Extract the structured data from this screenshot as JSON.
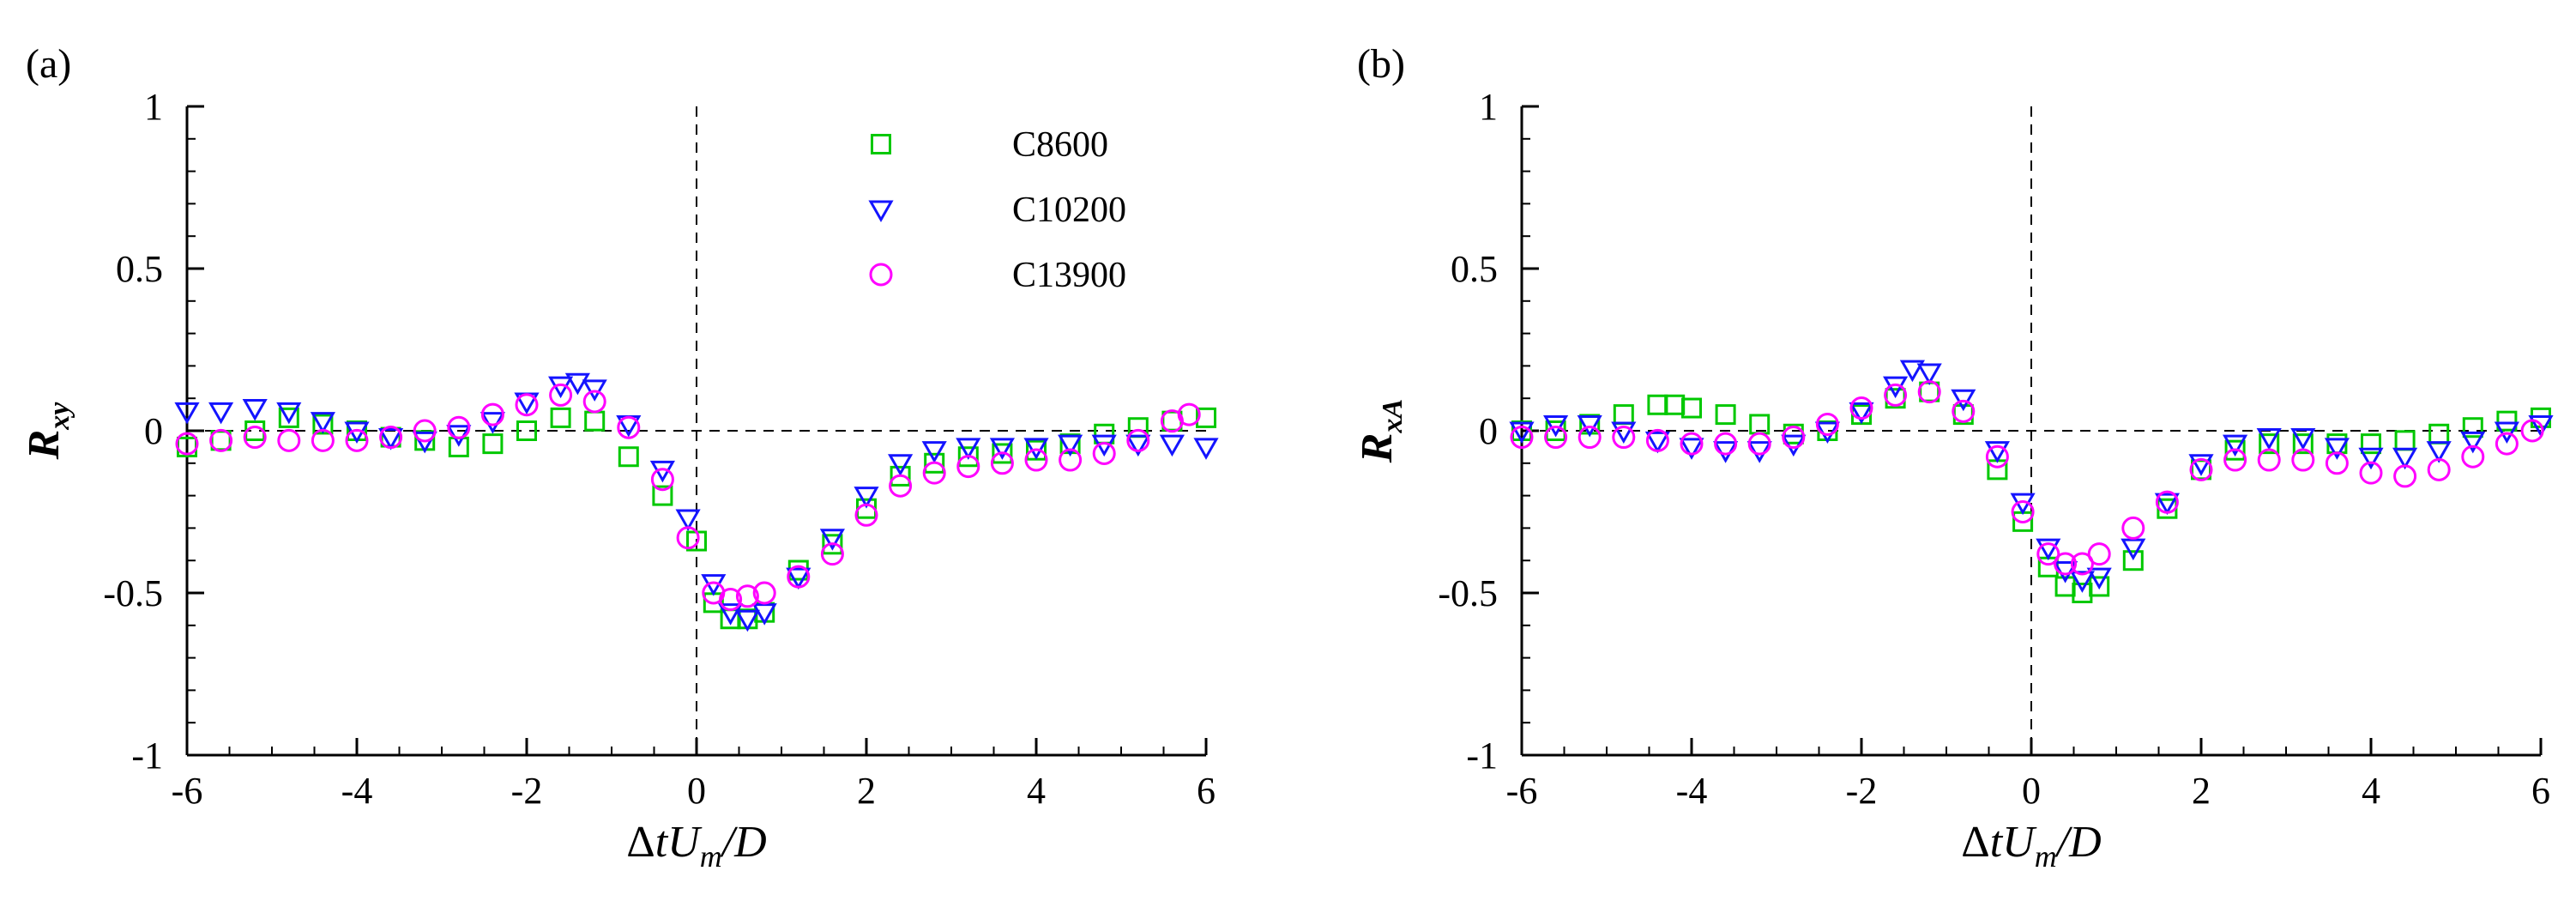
{
  "chart_data": [
    {
      "panel_label": "(a)",
      "type": "scatter",
      "xlabel": {
        "prefix": "Δ",
        "main": "tU",
        "sub": "m",
        "suffix": "/D"
      },
      "ylabel": {
        "main": "R",
        "sub": "xy"
      },
      "xlim": [
        -6,
        6
      ],
      "ylim": [
        -1,
        1
      ],
      "xticks": [
        "-6",
        "-4",
        "-2",
        "0",
        "2",
        "4",
        "6"
      ],
      "xtick_values": [
        -6,
        -4,
        -2,
        0,
        2,
        4,
        6
      ],
      "yticks": [
        "-1",
        "-0.5",
        "0",
        "0.5",
        "1"
      ],
      "ytick_values": [
        -1,
        -0.5,
        0,
        0.5,
        1
      ],
      "reference_lines": {
        "horizontal_y": 0,
        "vertical_x": 0,
        "style": "dashed"
      },
      "legend": {
        "location": "top-right"
      },
      "series": [
        {
          "name": "C8600",
          "marker": "square",
          "color": "#00c800",
          "x": [
            -6,
            -5.6,
            -5.2,
            -4.8,
            -4.4,
            -4,
            -3.6,
            -3.2,
            -2.8,
            -2.4,
            -2,
            -1.6,
            -1.2,
            -0.8,
            -0.4,
            0,
            0.2,
            0.4,
            0.6,
            0.8,
            1.2,
            1.6,
            2,
            2.4,
            2.8,
            3.2,
            3.6,
            4,
            4.4,
            4.8,
            5.2,
            5.6,
            6
          ],
          "y": [
            -0.05,
            -0.03,
            0,
            0.04,
            0.02,
            0,
            -0.02,
            -0.03,
            -0.05,
            -0.04,
            0,
            0.04,
            0.03,
            -0.08,
            -0.2,
            -0.34,
            -0.53,
            -0.58,
            -0.58,
            -0.56,
            -0.43,
            -0.35,
            -0.24,
            -0.14,
            -0.1,
            -0.08,
            -0.07,
            -0.06,
            -0.04,
            -0.01,
            0.01,
            0.03,
            0.04
          ]
        },
        {
          "name": "C10200",
          "marker": "triangle-down",
          "color": "#1414ff",
          "x": [
            -6,
            -5.6,
            -5.2,
            -4.8,
            -4.4,
            -4,
            -3.6,
            -3.2,
            -2.8,
            -2.4,
            -2,
            -1.6,
            -1.4,
            -1.2,
            -0.8,
            -0.4,
            -0.1,
            0.2,
            0.4,
            0.6,
            0.8,
            1.2,
            1.6,
            2,
            2.4,
            2.8,
            3.2,
            3.6,
            4,
            4.4,
            4.8,
            5.2,
            5.6,
            6
          ],
          "y": [
            0.06,
            0.06,
            0.07,
            0.06,
            0.03,
            0,
            -0.02,
            -0.03,
            -0.01,
            0.03,
            0.09,
            0.14,
            0.15,
            0.13,
            0.02,
            -0.12,
            -0.27,
            -0.47,
            -0.56,
            -0.58,
            -0.56,
            -0.45,
            -0.33,
            -0.2,
            -0.1,
            -0.06,
            -0.05,
            -0.05,
            -0.05,
            -0.04,
            -0.04,
            -0.04,
            -0.04,
            -0.05
          ]
        },
        {
          "name": "C13900",
          "marker": "circle",
          "color": "#ff00ff",
          "x": [
            -6,
            -5.6,
            -5.2,
            -4.8,
            -4.4,
            -4,
            -3.6,
            -3.2,
            -2.8,
            -2.4,
            -2,
            -1.6,
            -1.2,
            -0.8,
            -0.4,
            -0.1,
            0.2,
            0.4,
            0.6,
            0.8,
            1.2,
            1.6,
            2,
            2.4,
            2.8,
            3.2,
            3.6,
            4,
            4.4,
            4.8,
            5.2,
            5.6,
            5.8
          ],
          "y": [
            -0.04,
            -0.03,
            -0.02,
            -0.03,
            -0.03,
            -0.03,
            -0.02,
            0,
            0.01,
            0.05,
            0.08,
            0.11,
            0.09,
            0.01,
            -0.15,
            -0.33,
            -0.5,
            -0.52,
            -0.51,
            -0.5,
            -0.45,
            -0.38,
            -0.26,
            -0.17,
            -0.13,
            -0.11,
            -0.1,
            -0.09,
            -0.09,
            -0.07,
            -0.03,
            0.03,
            0.05
          ]
        }
      ]
    },
    {
      "panel_label": "(b)",
      "type": "scatter",
      "xlabel": {
        "prefix": "Δ",
        "main": "tU",
        "sub": "m",
        "suffix": "/D"
      },
      "ylabel": {
        "main": "R",
        "sub": "xA"
      },
      "xlim": [
        -6,
        6
      ],
      "ylim": [
        -1,
        1
      ],
      "xticks": [
        "-6",
        "-4",
        "-2",
        "0",
        "2",
        "4",
        "6"
      ],
      "xtick_values": [
        -6,
        -4,
        -2,
        0,
        2,
        4,
        6
      ],
      "yticks": [
        "-1",
        "-0.5",
        "0",
        "0.5",
        "1"
      ],
      "ytick_values": [
        -1,
        -0.5,
        0,
        0.5,
        1
      ],
      "reference_lines": {
        "horizontal_y": 0,
        "vertical_x": 0,
        "style": "dashed"
      },
      "legend": null,
      "series": [
        {
          "name": "C8600",
          "marker": "square",
          "color": "#00c800",
          "x": [
            -6,
            -5.6,
            -5.2,
            -4.8,
            -4.4,
            -4.2,
            -4,
            -3.6,
            -3.2,
            -2.8,
            -2.4,
            -2,
            -1.6,
            -1.2,
            -0.8,
            -0.4,
            -0.1,
            0.2,
            0.4,
            0.6,
            0.8,
            1.2,
            1.6,
            2,
            2.4,
            2.8,
            3.2,
            3.6,
            4,
            4.4,
            4.8,
            5.2,
            5.6,
            6
          ],
          "y": [
            0,
            0,
            0.02,
            0.05,
            0.08,
            0.08,
            0.07,
            0.05,
            0.02,
            -0.01,
            0,
            0.05,
            0.1,
            0.12,
            0.05,
            -0.12,
            -0.28,
            -0.42,
            -0.48,
            -0.5,
            -0.48,
            -0.4,
            -0.24,
            -0.12,
            -0.06,
            -0.04,
            -0.04,
            -0.04,
            -0.04,
            -0.03,
            -0.01,
            0.01,
            0.03,
            0.04
          ]
        },
        {
          "name": "C10200",
          "marker": "triangle-down",
          "color": "#1414ff",
          "x": [
            -6,
            -5.6,
            -5.2,
            -4.8,
            -4.4,
            -4,
            -3.6,
            -3.2,
            -2.8,
            -2.4,
            -2,
            -1.6,
            -1.4,
            -1.2,
            -0.8,
            -0.4,
            -0.1,
            0.2,
            0.4,
            0.6,
            0.8,
            1.2,
            1.6,
            2,
            2.4,
            2.8,
            3.2,
            3.6,
            4,
            4.4,
            4.8,
            5.2,
            5.6,
            6
          ],
          "y": [
            0,
            0.02,
            0.02,
            0,
            -0.03,
            -0.05,
            -0.06,
            -0.06,
            -0.04,
            0,
            0.06,
            0.14,
            0.19,
            0.18,
            0.1,
            -0.06,
            -0.22,
            -0.36,
            -0.43,
            -0.46,
            -0.45,
            -0.36,
            -0.22,
            -0.1,
            -0.04,
            -0.02,
            -0.02,
            -0.05,
            -0.08,
            -0.08,
            -0.06,
            -0.03,
            0,
            0.02
          ]
        },
        {
          "name": "C13900",
          "marker": "circle",
          "color": "#ff00ff",
          "x": [
            -6,
            -5.6,
            -5.2,
            -4.8,
            -4.4,
            -4,
            -3.6,
            -3.2,
            -2.8,
            -2.4,
            -2,
            -1.6,
            -1.2,
            -0.8,
            -0.4,
            -0.1,
            0.2,
            0.4,
            0.6,
            0.8,
            1.2,
            1.6,
            2,
            2.4,
            2.8,
            3.2,
            3.6,
            4,
            4.4,
            4.8,
            5.2,
            5.6,
            5.9
          ],
          "y": [
            -0.02,
            -0.02,
            -0.02,
            -0.02,
            -0.03,
            -0.04,
            -0.04,
            -0.04,
            -0.02,
            0.02,
            0.07,
            0.11,
            0.12,
            0.06,
            -0.08,
            -0.25,
            -0.38,
            -0.41,
            -0.41,
            -0.38,
            -0.3,
            -0.22,
            -0.12,
            -0.09,
            -0.09,
            -0.09,
            -0.1,
            -0.13,
            -0.14,
            -0.12,
            -0.08,
            -0.04,
            0
          ]
        }
      ]
    }
  ]
}
